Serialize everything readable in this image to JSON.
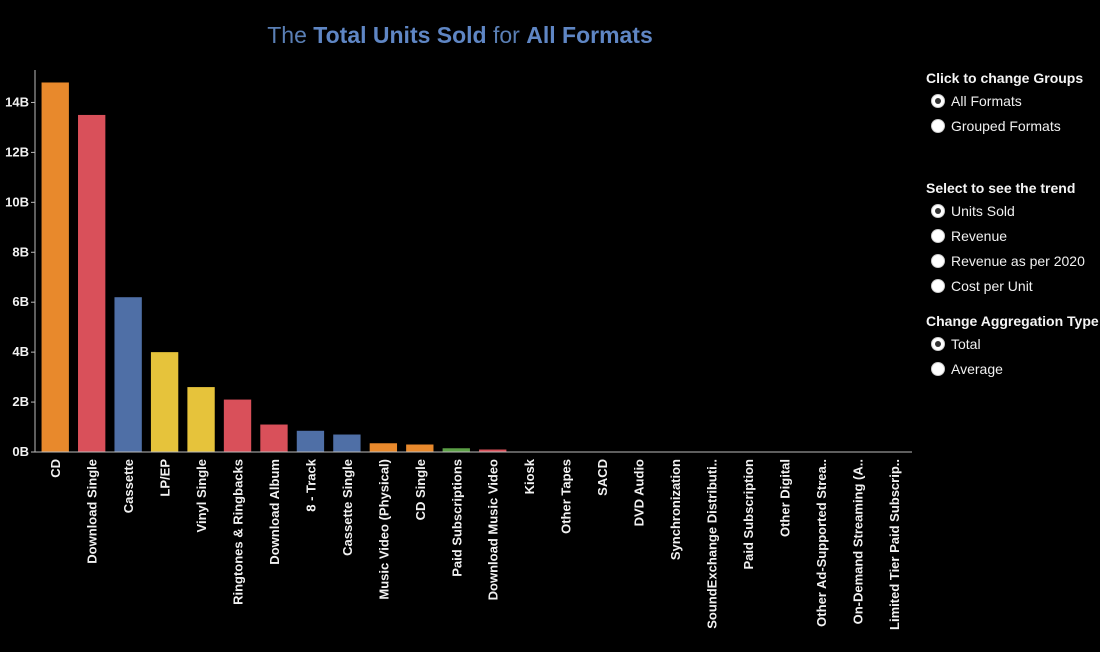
{
  "title": {
    "prefix": "The",
    "measure": "Total Units Sold",
    "connector": "for",
    "group": "All Formats"
  },
  "controls": {
    "groups": {
      "heading": "Click to change Groups",
      "options": [
        {
          "label": "All Formats",
          "checked": true
        },
        {
          "label": "Grouped Formats",
          "checked": false
        }
      ]
    },
    "trend": {
      "heading": "Select to see the trend",
      "options": [
        {
          "label": "Units Sold",
          "checked": true
        },
        {
          "label": "Revenue",
          "checked": false
        },
        {
          "label": "Revenue as per 2020",
          "checked": false
        },
        {
          "label": "Cost per Unit",
          "checked": false
        }
      ]
    },
    "aggregation": {
      "heading": "Change Aggregation Type",
      "options": [
        {
          "label": "Total",
          "checked": true
        },
        {
          "label": "Average",
          "checked": false
        }
      ]
    }
  },
  "colors": {
    "orange": "#e8892c",
    "red": "#d9505a",
    "blue": "#4f6fa6",
    "yellow": "#e6c33b",
    "green": "#5ba046",
    "title": "#5f86c4",
    "background": "#000000"
  },
  "chart_data": {
    "type": "bar",
    "title": "The Total Units Sold for All Formats",
    "xlabel": "",
    "ylabel": "",
    "ylim": [
      0,
      15.3
    ],
    "yticks": [
      0,
      2,
      4,
      6,
      8,
      10,
      12,
      14
    ],
    "ytick_labels": [
      "0B",
      "2B",
      "4B",
      "6B",
      "8B",
      "10B",
      "12B",
      "14B"
    ],
    "grid": false,
    "categories": [
      "CD",
      "Download Single",
      "Cassette",
      "LP/EP",
      "Vinyl Single",
      "Ringtones & Ringbacks",
      "Download Album",
      "8 - Track",
      "Cassette Single",
      "Music Video (Physical)",
      "CD Single",
      "Paid Subscriptions",
      "Download Music Video",
      "Kiosk",
      "Other Tapes",
      "SACD",
      "DVD Audio",
      "Synchronization",
      "SoundExchange Distributi..",
      "Paid Subscription",
      "Other Digital",
      "Other Ad-Supported Strea..",
      "On-Demand Streaming (A..",
      "Limited Tier Paid Subscrip.."
    ],
    "values": [
      14.8,
      13.5,
      6.2,
      4.0,
      2.6,
      2.1,
      1.1,
      0.85,
      0.7,
      0.35,
      0.3,
      0.15,
      0.1,
      0,
      0,
      0,
      0,
      0,
      0,
      0,
      0,
      0,
      0,
      0
    ],
    "units": "B",
    "bar_colors": [
      "#e8892c",
      "#d9505a",
      "#4f6fa6",
      "#e6c33b",
      "#e6c33b",
      "#d9505a",
      "#d9505a",
      "#4f6fa6",
      "#4f6fa6",
      "#e8892c",
      "#e8892c",
      "#5ba046",
      "#d9505a",
      "#e8892c",
      "#4f6fa6",
      "#e8892c",
      "#e8892c",
      "#5ba046",
      "#5ba046",
      "#5ba046",
      "#d9505a",
      "#5ba046",
      "#5ba046",
      "#5ba046"
    ]
  }
}
